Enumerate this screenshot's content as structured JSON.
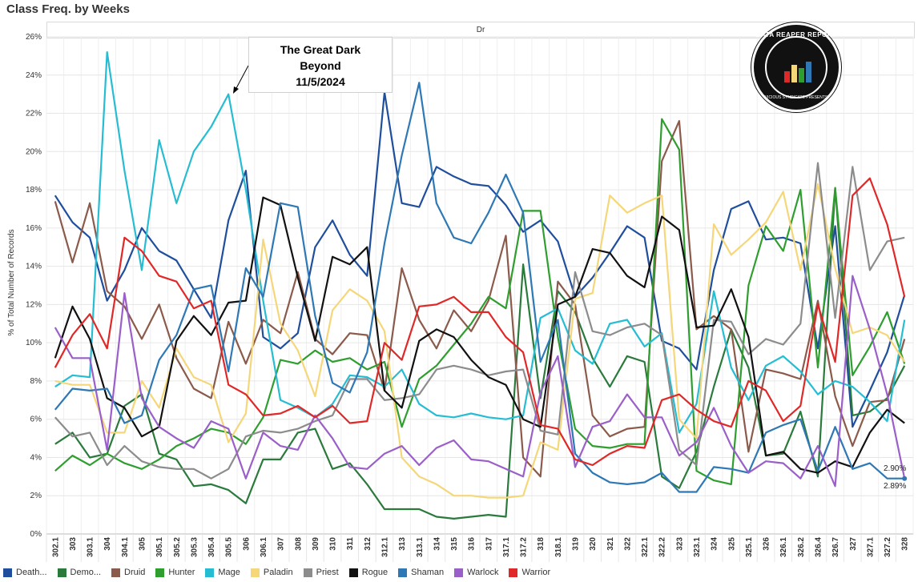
{
  "title": "Class Freq. by Weeks",
  "panel_header": "Dr",
  "annotation": {
    "line1": "The Great Dark",
    "line2": "Beyond",
    "line3": "11/5/2024"
  },
  "logo": {
    "text": "DATA REAPER REPORT",
    "subtext": "VICIOUS SYNDICATE PRESENTS"
  },
  "end_labels": {
    "upper": "2.90%",
    "lower": "2.89%"
  },
  "chart_data": {
    "type": "line",
    "title": "Class Freq. by Weeks",
    "ylabel": "% of Total Number of Records",
    "ylim": [
      0,
      26
    ],
    "yticks": [
      0,
      2,
      4,
      6,
      8,
      10,
      12,
      14,
      16,
      18,
      20,
      22,
      24,
      26
    ],
    "ytick_suffix": "%",
    "grid": true,
    "legend_position": "bottom",
    "categories": [
      "302.1",
      "303",
      "303.1",
      "304",
      "304.1",
      "305",
      "305.1",
      "305.2",
      "305.3",
      "305.4",
      "305.5",
      "306",
      "306.1",
      "307",
      "308",
      "309",
      "310",
      "311",
      "312",
      "312.1",
      "313",
      "313.1",
      "314",
      "315",
      "316",
      "317",
      "317.1",
      "317.2",
      "318",
      "318.1",
      "319",
      "320",
      "321",
      "322",
      "322.1",
      "322.2",
      "323",
      "323.1",
      "324",
      "325",
      "325.1",
      "326",
      "326.1",
      "326.2",
      "326.4",
      "326.7",
      "327",
      "327.1",
      "327.2",
      "328"
    ],
    "x_labels_shown": [
      "302.1",
      "303",
      "303.1",
      "304",
      "304.1",
      "305",
      "305.1",
      "305.2",
      "305.3",
      "305.4",
      "305.5",
      "306",
      "306.1",
      "307",
      "308",
      "309",
      "310",
      "311",
      "312",
      "312.1",
      "313",
      "313.1",
      "314",
      "315",
      "316",
      "317",
      "317.1",
      "317.2",
      "318",
      "318.1",
      "319",
      "320",
      "321",
      "322",
      "322.1",
      "322.2",
      "323",
      "323.1",
      "324",
      "325",
      "325.1",
      "326",
      "326.1",
      "326.2",
      "326.4",
      "326.7",
      "327",
      "327.1",
      "327.2",
      "328"
    ],
    "series": [
      {
        "name": "Death...",
        "color": "#1f4e9c",
        "values": [
          17.7,
          16.3,
          15.5,
          12.2,
          13.8,
          16.0,
          14.8,
          14.3,
          12.8,
          11.3,
          16.4,
          19.0,
          10.3,
          9.7,
          10.5,
          15.0,
          16.4,
          14.6,
          13.5,
          23.1,
          17.3,
          17.1,
          19.2,
          18.7,
          18.3,
          18.2,
          17.2,
          15.8,
          16.4,
          15.3,
          12.4,
          13.4,
          14.7,
          16.1,
          15.5,
          10.1,
          9.7,
          8.6,
          13.8,
          17.0,
          17.4,
          15.4,
          15.5,
          15.2,
          9.7,
          16.1,
          5.6,
          7.5,
          9.5,
          12.5
        ]
      },
      {
        "name": "Demo...",
        "color": "#2a7a3c",
        "values": [
          4.7,
          5.3,
          4.0,
          4.2,
          6.7,
          7.3,
          4.2,
          3.9,
          2.5,
          2.6,
          2.3,
          1.6,
          3.9,
          3.9,
          5.3,
          5.5,
          3.4,
          3.7,
          2.6,
          1.3,
          1.3,
          1.3,
          0.9,
          0.8,
          0.9,
          1.0,
          0.9,
          14.1,
          7.1,
          12.7,
          11.6,
          9.2,
          7.7,
          9.3,
          9.0,
          3.0,
          2.4,
          4.3,
          7.7,
          10.7,
          8.7,
          4.1,
          4.2,
          6.4,
          3.0,
          18.1,
          6.2,
          6.4,
          7.1,
          8.8
        ]
      },
      {
        "name": "Druid",
        "color": "#8b5a4a",
        "values": [
          17.4,
          14.2,
          17.3,
          12.7,
          11.9,
          10.2,
          12.0,
          9.2,
          7.6,
          7.1,
          11.1,
          8.9,
          11.2,
          10.5,
          13.7,
          10.2,
          9.4,
          10.5,
          10.4,
          7.5,
          13.9,
          11.2,
          9.7,
          11.7,
          10.6,
          12.2,
          15.6,
          4.0,
          3.0,
          13.2,
          12.0,
          6.2,
          5.1,
          5.5,
          5.6,
          19.5,
          21.6,
          10.7,
          11.4,
          10.7,
          4.3,
          8.6,
          8.4,
          8.1,
          12.2,
          7.2,
          4.6,
          6.9,
          7.0,
          10.2
        ]
      },
      {
        "name": "Hunter",
        "color": "#2e9e2e",
        "values": [
          3.3,
          4.1,
          3.6,
          4.2,
          3.7,
          3.4,
          3.9,
          4.6,
          5.0,
          5.5,
          5.3,
          4.7,
          6.1,
          9.1,
          8.9,
          9.6,
          9.0,
          9.2,
          8.6,
          9.0,
          5.6,
          8.1,
          8.8,
          9.9,
          11.0,
          12.4,
          11.8,
          16.9,
          16.9,
          10.3,
          5.5,
          4.6,
          4.5,
          4.7,
          4.7,
          21.7,
          20.1,
          3.3,
          2.8,
          2.6,
          13.0,
          16.1,
          14.8,
          18.0,
          8.7,
          18.1,
          8.3,
          9.8,
          11.6,
          8.9
        ]
      },
      {
        "name": "Mage",
        "color": "#26bdd3",
        "values": [
          7.7,
          8.3,
          8.2,
          25.2,
          19.0,
          13.8,
          20.6,
          17.3,
          20.0,
          21.3,
          23.0,
          18.0,
          12.2,
          7.0,
          6.6,
          6.1,
          6.8,
          8.3,
          8.2,
          7.7,
          8.6,
          6.8,
          6.2,
          6.1,
          6.3,
          6.1,
          6.0,
          6.2,
          11.3,
          11.8,
          9.6,
          8.9,
          11.0,
          11.2,
          9.8,
          10.5,
          5.3,
          6.8,
          12.7,
          8.7,
          7.0,
          8.8,
          9.3,
          8.5,
          7.3,
          8.0,
          7.7,
          6.9,
          5.9,
          11.2
        ]
      },
      {
        "name": "Paladin",
        "color": "#f5d77a",
        "values": [
          8.0,
          7.8,
          7.8,
          5.3,
          5.3,
          8.0,
          6.6,
          9.7,
          8.2,
          7.8,
          4.8,
          6.3,
          15.4,
          11.0,
          9.6,
          7.2,
          11.7,
          12.8,
          12.2,
          10.6,
          4.0,
          3.0,
          2.6,
          2.0,
          2.0,
          1.9,
          1.9,
          2.0,
          4.8,
          4.4,
          12.3,
          12.6,
          17.7,
          16.8,
          17.3,
          17.7,
          6.0,
          5.0,
          16.2,
          14.6,
          15.4,
          16.3,
          17.9,
          13.8,
          18.3,
          13.9,
          10.5,
          10.8,
          10.4,
          9.0
        ]
      },
      {
        "name": "Priest",
        "color": "#8c8c8c",
        "values": [
          6.1,
          5.1,
          5.3,
          3.6,
          4.6,
          3.8,
          3.5,
          3.4,
          3.4,
          2.9,
          3.4,
          5.1,
          5.4,
          5.3,
          5.5,
          5.9,
          6.2,
          8.1,
          8.1,
          7.0,
          7.1,
          7.3,
          8.6,
          8.8,
          8.6,
          8.3,
          8.5,
          8.6,
          5.4,
          5.2,
          13.7,
          10.6,
          10.4,
          10.8,
          11.0,
          10.4,
          4.4,
          3.6,
          11.2,
          11.1,
          9.4,
          10.2,
          9.9,
          11.0,
          19.4,
          11.3,
          19.2,
          13.8,
          15.3,
          15.5
        ]
      },
      {
        "name": "Rogue",
        "color": "#111111",
        "values": [
          9.2,
          11.9,
          10.2,
          7.1,
          6.6,
          5.1,
          5.6,
          10.1,
          11.4,
          10.4,
          12.1,
          12.2,
          17.6,
          17.2,
          13.4,
          10.1,
          14.5,
          14.1,
          15.0,
          7.5,
          6.6,
          10.1,
          10.7,
          10.3,
          9.1,
          8.2,
          7.8,
          6.0,
          5.6,
          12.0,
          12.4,
          14.9,
          14.7,
          13.5,
          12.9,
          16.6,
          15.9,
          10.8,
          10.9,
          12.8,
          10.3,
          4.1,
          4.3,
          3.4,
          3.2,
          3.8,
          3.5,
          5.3,
          6.5,
          5.8
        ]
      },
      {
        "name": "Shaman",
        "color": "#2e78b5",
        "values": [
          6.5,
          7.6,
          7.5,
          7.6,
          5.8,
          6.2,
          9.1,
          10.4,
          12.8,
          13.0,
          8.5,
          13.9,
          12.4,
          17.3,
          17.1,
          11.4,
          7.9,
          7.4,
          9.5,
          15.2,
          19.8,
          23.6,
          17.3,
          15.5,
          15.2,
          16.8,
          18.8,
          16.8,
          9.0,
          11.2,
          4.2,
          3.2,
          2.7,
          2.6,
          2.7,
          3.2,
          2.2,
          2.2,
          3.5,
          3.4,
          3.2,
          5.3,
          5.7,
          6.0,
          3.3,
          5.6,
          3.4,
          3.7,
          2.9,
          2.9
        ]
      },
      {
        "name": "Warlock",
        "color": "#9a5fc8",
        "values": [
          10.8,
          9.2,
          9.2,
          4.4,
          12.6,
          7.1,
          5.6,
          5.0,
          4.5,
          5.9,
          5.5,
          2.9,
          5.3,
          4.6,
          4.4,
          6.2,
          5.0,
          3.5,
          3.4,
          4.2,
          4.6,
          3.6,
          4.5,
          4.9,
          3.9,
          3.8,
          3.4,
          3.0,
          7.4,
          9.3,
          3.5,
          5.6,
          5.9,
          7.3,
          6.1,
          6.1,
          4.1,
          4.8,
          6.6,
          4.6,
          3.2,
          3.8,
          3.7,
          2.9,
          4.6,
          2.5,
          13.5,
          10.7,
          7.3,
          2.9
        ]
      },
      {
        "name": "Warrior",
        "color": "#e02828",
        "values": [
          8.7,
          10.4,
          11.5,
          9.7,
          15.5,
          14.8,
          13.5,
          13.2,
          11.8,
          12.2,
          7.8,
          7.3,
          6.2,
          6.3,
          6.7,
          6.1,
          6.7,
          5.8,
          5.9,
          10.0,
          9.1,
          11.9,
          12.0,
          12.4,
          11.6,
          11.6,
          10.3,
          9.5,
          5.7,
          5.5,
          3.9,
          3.6,
          4.2,
          4.6,
          4.5,
          7.0,
          7.3,
          6.5,
          5.9,
          5.6,
          8.0,
          7.5,
          5.9,
          6.7,
          12.0,
          9.0,
          17.7,
          18.6,
          16.2,
          12.4
        ]
      }
    ]
  }
}
